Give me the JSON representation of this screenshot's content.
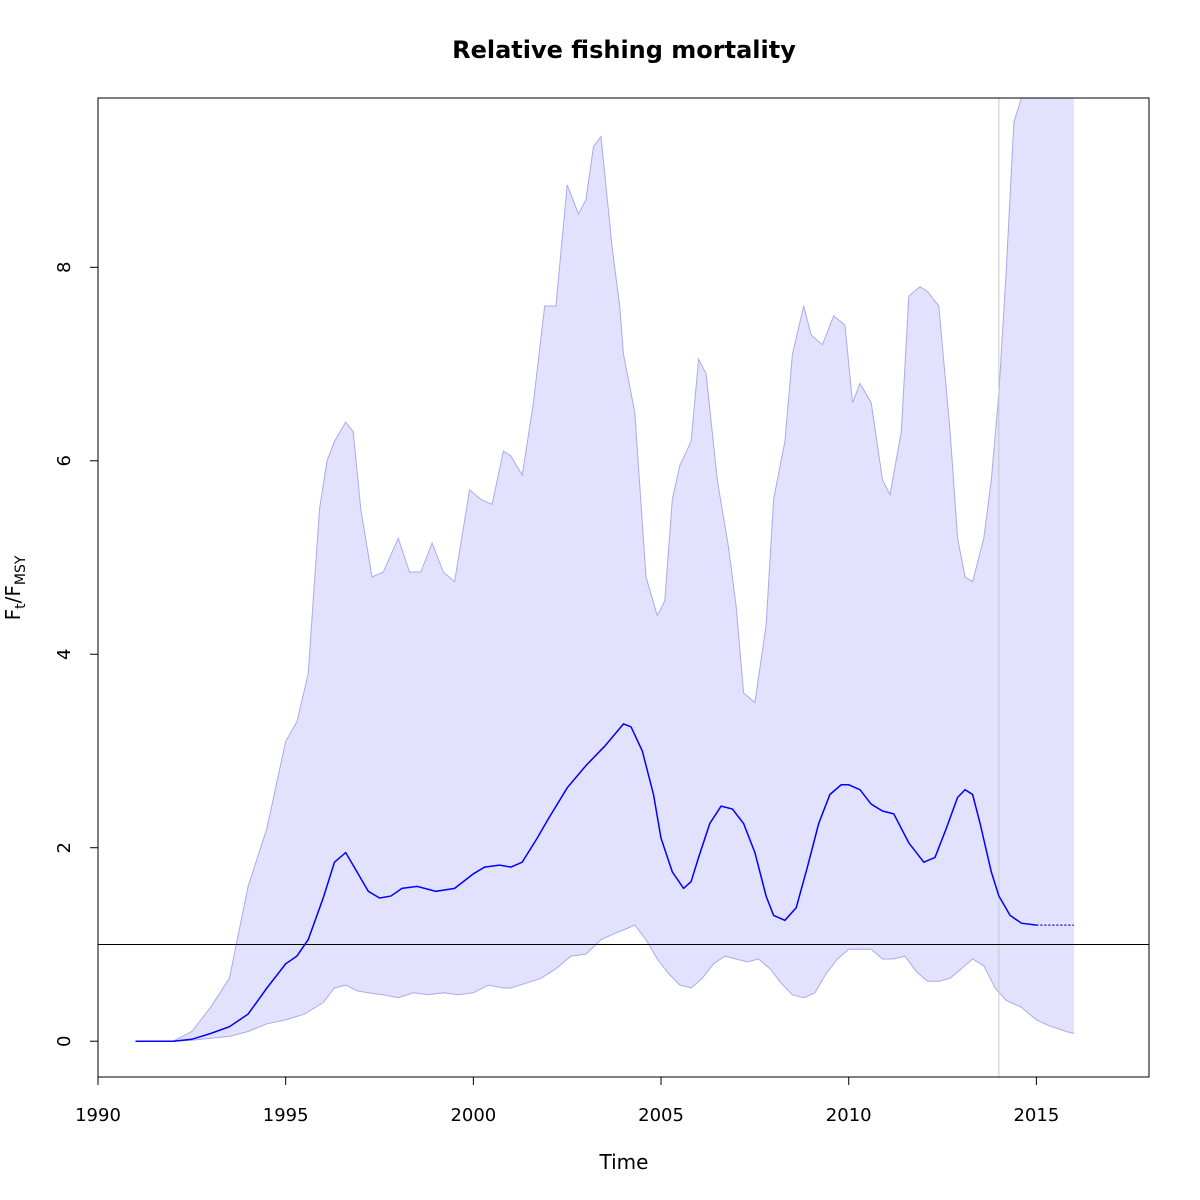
{
  "chart_data": {
    "type": "line",
    "title": "Relative fishing mortality",
    "xlabel": "Time",
    "ylabel": {
      "main": "F",
      "sub1": "t",
      "sep": "/F",
      "sub2": "MSY"
    },
    "xlim": [
      1990,
      2018
    ],
    "ylim": [
      -0.37,
      9.75
    ],
    "x_ticks": [
      1990,
      1995,
      2000,
      2005,
      2010,
      2015
    ],
    "y_ticks": [
      0,
      2,
      4,
      6,
      8
    ],
    "reference_hline": 1,
    "reference_vline": 2014,
    "colors": {
      "line": "#0000ff",
      "band_fill": "#e2e2ff",
      "band_edge": "#aaaaee",
      "vline": "#c8c8c8",
      "hline": "#000000"
    },
    "series": [
      {
        "role": "estimate",
        "x": [
          1991.0,
          1991.5,
          1992.0,
          1992.5,
          1993.0,
          1993.5,
          1994.0,
          1994.5,
          1995.0,
          1995.3,
          1995.6,
          1996.0,
          1996.3,
          1996.6,
          1996.9,
          1997.2,
          1997.5,
          1997.8,
          1998.1,
          1998.5,
          1999.0,
          1999.5,
          2000.0,
          2000.3,
          2000.7,
          2001.0,
          2001.3,
          2001.7,
          2002.0,
          2002.5,
          2003.0,
          2003.5,
          2004.0,
          2004.2,
          2004.5,
          2004.8,
          2005.0,
          2005.3,
          2005.6,
          2005.8,
          2006.0,
          2006.3,
          2006.6,
          2006.9,
          2007.2,
          2007.5,
          2007.8,
          2008.0,
          2008.3,
          2008.6,
          2008.9,
          2009.2,
          2009.5,
          2009.8,
          2010.0,
          2010.3,
          2010.6,
          2010.9,
          2011.2,
          2011.6,
          2012.0,
          2012.3,
          2012.6,
          2012.9,
          2013.1,
          2013.3,
          2013.5,
          2013.8,
          2014.0,
          2014.3,
          2014.6,
          2015.0
        ],
        "values": [
          0.0,
          0.0,
          0.0,
          0.02,
          0.08,
          0.15,
          0.28,
          0.55,
          0.8,
          0.88,
          1.05,
          1.48,
          1.85,
          1.95,
          1.75,
          1.55,
          1.48,
          1.5,
          1.58,
          1.6,
          1.55,
          1.58,
          1.73,
          1.8,
          1.82,
          1.8,
          1.85,
          2.1,
          2.3,
          2.62,
          2.85,
          3.05,
          3.28,
          3.25,
          3.0,
          2.55,
          2.1,
          1.75,
          1.58,
          1.65,
          1.9,
          2.25,
          2.43,
          2.4,
          2.25,
          1.95,
          1.5,
          1.3,
          1.25,
          1.38,
          1.8,
          2.25,
          2.55,
          2.65,
          2.65,
          2.6,
          2.45,
          2.38,
          2.35,
          2.05,
          1.85,
          1.9,
          2.2,
          2.52,
          2.6,
          2.55,
          2.25,
          1.75,
          1.5,
          1.3,
          1.22,
          1.2
        ]
      },
      {
        "role": "prediction",
        "x": [
          2015.0,
          2016.0
        ],
        "values": [
          1.2,
          1.2
        ]
      },
      {
        "role": "upper_ci",
        "x": [
          1991.0,
          1991.5,
          1992.0,
          1992.5,
          1993.0,
          1993.5,
          1994.0,
          1994.5,
          1995.0,
          1995.3,
          1995.6,
          1995.9,
          1996.1,
          1996.3,
          1996.6,
          1996.8,
          1997.0,
          1997.3,
          1997.6,
          1998.0,
          1998.3,
          1998.6,
          1998.9,
          1999.2,
          1999.5,
          1999.9,
          2000.2,
          2000.5,
          2000.8,
          2001.0,
          2001.3,
          2001.6,
          2001.9,
          2002.2,
          2002.5,
          2002.8,
          2003.0,
          2003.2,
          2003.4,
          2003.7,
          2003.9,
          2004.0,
          2004.3,
          2004.6,
          2004.9,
          2005.1,
          2005.3,
          2005.5,
          2005.8,
          2006.0,
          2006.2,
          2006.5,
          2006.8,
          2007.0,
          2007.2,
          2007.5,
          2007.8,
          2008.0,
          2008.3,
          2008.5,
          2008.8,
          2009.0,
          2009.3,
          2009.6,
          2009.9,
          2010.1,
          2010.3,
          2010.6,
          2010.9,
          2011.1,
          2011.4,
          2011.6,
          2011.9,
          2012.1,
          2012.4,
          2012.7,
          2012.9,
          2013.1,
          2013.3,
          2013.6,
          2013.8,
          2014.0,
          2014.2,
          2014.4,
          2014.6,
          2014.8,
          2015.0,
          2015.2,
          2015.4,
          2015.6,
          2016.0
        ],
        "values": [
          0.0,
          0.0,
          0.0,
          0.1,
          0.35,
          0.65,
          1.6,
          2.2,
          3.1,
          3.3,
          3.8,
          5.5,
          6.0,
          6.2,
          6.4,
          6.3,
          5.5,
          4.8,
          4.85,
          5.2,
          4.85,
          4.85,
          5.15,
          4.85,
          4.75,
          5.7,
          5.6,
          5.55,
          6.1,
          6.05,
          5.85,
          6.6,
          7.6,
          7.6,
          8.85,
          8.55,
          8.7,
          9.25,
          9.35,
          8.2,
          7.6,
          7.1,
          6.5,
          4.8,
          4.4,
          4.55,
          5.6,
          5.95,
          6.2,
          7.05,
          6.9,
          5.8,
          5.1,
          4.5,
          3.6,
          3.5,
          4.3,
          5.6,
          6.2,
          7.1,
          7.6,
          7.3,
          7.2,
          7.5,
          7.4,
          6.6,
          6.8,
          6.6,
          5.8,
          5.65,
          6.3,
          7.7,
          7.8,
          7.75,
          7.6,
          6.3,
          5.2,
          4.8,
          4.75,
          5.2,
          5.8,
          6.7,
          8.0,
          9.5,
          9.75,
          9.75,
          9.75,
          9.75,
          9.75,
          9.75,
          9.75
        ],
        "note": ""
      },
      {
        "role": "lower_ci",
        "x": [
          1991.0,
          1991.5,
          1992.0,
          1992.5,
          1993.0,
          1993.5,
          1994.0,
          1994.5,
          1995.0,
          1995.5,
          1996.0,
          1996.3,
          1996.6,
          1996.9,
          1997.2,
          1997.6,
          1998.0,
          1998.4,
          1998.8,
          1999.2,
          1999.6,
          2000.0,
          2000.4,
          2000.8,
          2001.0,
          2001.4,
          2001.8,
          2002.2,
          2002.6,
          2003.0,
          2003.4,
          2003.8,
          2004.0,
          2004.3,
          2004.6,
          2004.9,
          2005.2,
          2005.5,
          2005.8,
          2006.1,
          2006.4,
          2006.7,
          2007.0,
          2007.3,
          2007.6,
          2007.9,
          2008.2,
          2008.5,
          2008.8,
          2009.1,
          2009.4,
          2009.7,
          2010.0,
          2010.3,
          2010.6,
          2010.9,
          2011.2,
          2011.5,
          2011.8,
          2012.1,
          2012.4,
          2012.7,
          2013.0,
          2013.3,
          2013.6,
          2013.9,
          2014.2,
          2014.6,
          2015.0,
          2015.4,
          2015.8,
          2016.0
        ],
        "values": [
          0.0,
          0.0,
          0.0,
          0.01,
          0.03,
          0.05,
          0.1,
          0.18,
          0.22,
          0.28,
          0.4,
          0.55,
          0.58,
          0.52,
          0.5,
          0.48,
          0.45,
          0.5,
          0.48,
          0.5,
          0.48,
          0.5,
          0.58,
          0.55,
          0.55,
          0.6,
          0.65,
          0.75,
          0.88,
          0.9,
          1.05,
          1.12,
          1.15,
          1.2,
          1.05,
          0.85,
          0.7,
          0.58,
          0.55,
          0.65,
          0.8,
          0.88,
          0.85,
          0.82,
          0.85,
          0.75,
          0.6,
          0.48,
          0.45,
          0.5,
          0.7,
          0.85,
          0.95,
          0.95,
          0.95,
          0.85,
          0.85,
          0.88,
          0.72,
          0.62,
          0.62,
          0.65,
          0.75,
          0.85,
          0.78,
          0.55,
          0.42,
          0.35,
          0.22,
          0.15,
          0.1,
          0.08
        ]
      }
    ]
  }
}
